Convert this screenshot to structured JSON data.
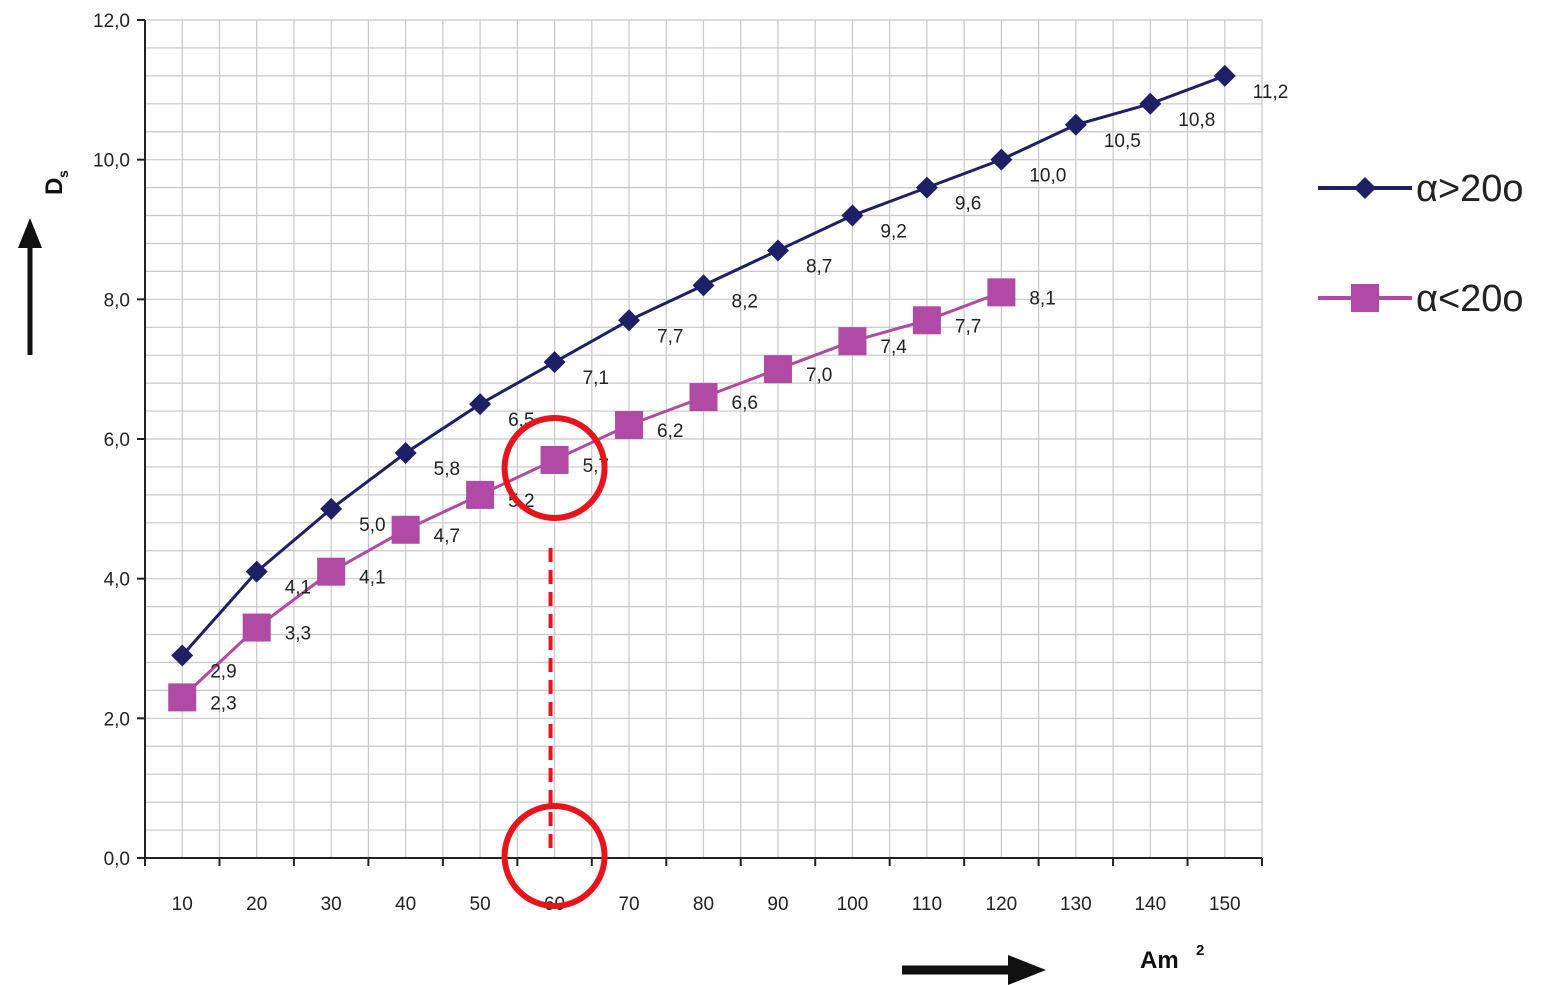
{
  "chart_data": {
    "type": "line",
    "x": [
      10,
      20,
      30,
      40,
      50,
      60,
      70,
      80,
      90,
      100,
      110,
      120,
      130,
      140,
      150
    ],
    "x_tick_labels": [
      "10",
      "20",
      "30",
      "40",
      "50",
      "60",
      "70",
      "80",
      "90",
      "100",
      "110",
      "120",
      "130",
      "140",
      "150"
    ],
    "y_tick_labels": [
      "0,0",
      "2,0",
      "4,0",
      "6,0",
      "8,0",
      "10,0",
      "12,0"
    ],
    "ylim": [
      0,
      12
    ],
    "xlim": [
      5,
      155
    ],
    "grid": true,
    "xlabel_main": "Am",
    "xlabel_sup": "2",
    "ylabel_main": "D",
    "ylabel_sub": "s",
    "legend_position": "right",
    "series": [
      {
        "name": "α>20o",
        "color": "#1f1f66",
        "marker": "diamond",
        "x": [
          10,
          20,
          30,
          40,
          50,
          60,
          70,
          80,
          90,
          100,
          110,
          120,
          130,
          140,
          150
        ],
        "values": [
          2.9,
          4.1,
          5.0,
          5.8,
          6.5,
          7.1,
          7.7,
          8.2,
          8.7,
          9.2,
          9.6,
          10.0,
          10.5,
          10.8,
          11.2
        ],
        "labels": [
          "2,9",
          "4,1",
          "5,0",
          "5,8",
          "6,5",
          "7,1",
          "7,7",
          "8,2",
          "8,7",
          "9,2",
          "9,6",
          "10,0",
          "10,5",
          "10,8",
          "11,2"
        ]
      },
      {
        "name": "α<20o",
        "color": "#b04aa4",
        "marker": "square",
        "x": [
          10,
          20,
          30,
          40,
          50,
          60,
          70,
          80,
          90,
          100,
          110,
          120
        ],
        "values": [
          2.3,
          3.3,
          4.1,
          4.7,
          5.2,
          5.7,
          6.2,
          6.6,
          7.0,
          7.4,
          7.7,
          8.1
        ],
        "labels": [
          "2,3",
          "3,3",
          "4,1",
          "4,7",
          "5,2",
          "5,7",
          "6,2",
          "6,6",
          "7,0",
          "7,4",
          "7,7",
          "8,1"
        ]
      }
    ],
    "annotation": {
      "x": 60,
      "y": 5.7,
      "color": "#e8141b"
    }
  }
}
